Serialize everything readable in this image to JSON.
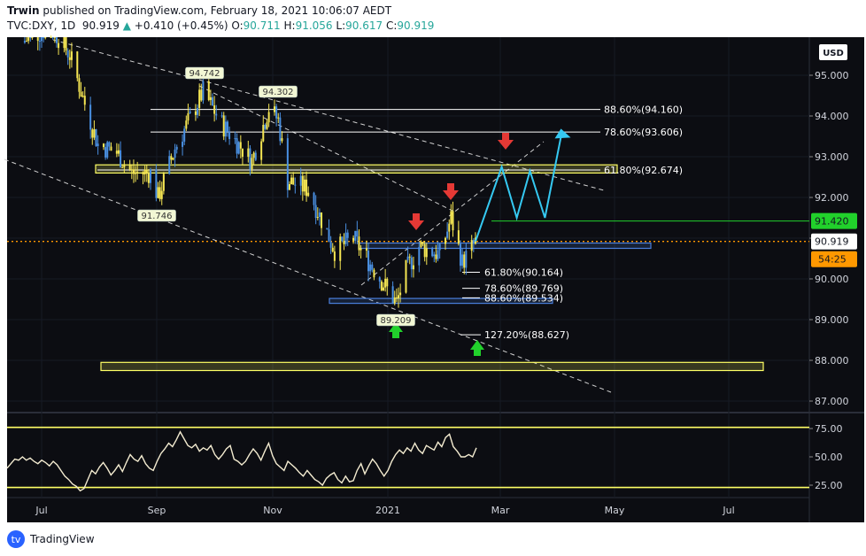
{
  "header": {
    "author": "Trwin",
    "published_text": " published on TradingView.com, February 18, 2021 10:06:07 AEDT",
    "symbol": "TVC:DXY, 1D",
    "last": "90.919",
    "change_arrow": "▲",
    "change": "+0.410 (+0.45%)",
    "o_label": "O:",
    "o_value": "90.711",
    "h_label": "H:",
    "h_value": "91.056",
    "l_label": "L:",
    "l_value": "90.617",
    "c_label": "C:",
    "c_value": "90.919"
  },
  "footer": {
    "brand": "TradingView",
    "logo_icon": "tradingview-logo-icon"
  },
  "currency_button": "USD",
  "colors": {
    "background": "#0c0d12",
    "candle": "#f5e653",
    "candle_alt": "#4a90e2",
    "trendline": "#cccccc",
    "fib_line": "#ffffff",
    "yellow_zone": "#ffff66",
    "blue_zone": "#4a7fdc",
    "projection": "#35c9f2",
    "green_level": "#21d12b",
    "last_price": "#ff9800",
    "arrow_down": "#e53935",
    "arrow_up": "#21d12b",
    "rsi": "#f3ebd0"
  },
  "chart_data": [
    {
      "type": "candlestick",
      "title": "TVC:DXY, 1D",
      "y_axis": {
        "ticks": [
          "95.000",
          "94.000",
          "93.000",
          "92.000",
          "91.000",
          "90.000",
          "89.000",
          "88.000",
          "87.000"
        ],
        "ylim": [
          86.7,
          95.6
        ]
      },
      "x_axis": {
        "ticks": [
          "Jul",
          "Sep",
          "Nov",
          "2021",
          "Mar",
          "May",
          "Jul"
        ]
      },
      "price_path": {
        "x": [
          "2020-06-20",
          "2020-07-06",
          "2020-07-16",
          "2020-07-24",
          "2020-07-31",
          "2020-08-10",
          "2020-08-18",
          "2020-08-28",
          "2020-09-01",
          "2020-09-10",
          "2020-09-25",
          "2020-10-05",
          "2020-10-21",
          "2020-10-30",
          "2020-11-04",
          "2020-11-09",
          "2020-11-20",
          "2020-12-04",
          "2020-12-14",
          "2020-12-24",
          "2021-01-06",
          "2021-01-11",
          "2021-01-18",
          "2021-01-29",
          "2021-02-04",
          "2021-02-10",
          "2021-02-17"
        ],
        "close": [
          95.8,
          96.2,
          95.5,
          94.3,
          93.3,
          93.1,
          92.6,
          92.6,
          92.0,
          93.2,
          94.6,
          93.8,
          92.9,
          94.2,
          93.9,
          92.4,
          92.2,
          90.7,
          91.0,
          90.3,
          89.4,
          90.2,
          90.8,
          90.6,
          91.5,
          90.4,
          90.9
        ]
      },
      "labels": [
        {
          "text": "94.742"
        },
        {
          "text": "94.302"
        },
        {
          "text": "91.746"
        },
        {
          "text": "89.209"
        }
      ],
      "fib_levels_upper": [
        {
          "label": "88.60%(94.160)",
          "value": 94.16
        },
        {
          "label": "78.60%(93.606)",
          "value": 93.606
        },
        {
          "label": "61.80%(92.674)",
          "value": 92.674
        }
      ],
      "fib_levels_lower": [
        {
          "label": "61.80%(90.164)",
          "value": 90.164
        },
        {
          "label": "78.60%(89.769)",
          "value": 89.769
        },
        {
          "label": "88.60%(89.534)",
          "value": 89.534
        },
        {
          "label": "127.20%(88.627)",
          "value": 88.627
        }
      ],
      "zones": [
        {
          "type": "yellow",
          "low": 92.6,
          "high": 92.8
        },
        {
          "type": "blue",
          "low": 90.75,
          "high": 90.88
        },
        {
          "type": "blue",
          "low": 89.4,
          "high": 89.52
        },
        {
          "type": "yellow",
          "low": 87.75,
          "high": 87.95
        }
      ],
      "price_markers": [
        {
          "label": "91.420",
          "value": 91.42,
          "style": "green-level"
        },
        {
          "label": "90.919",
          "value": 90.919,
          "style": "last-price"
        },
        {
          "label": "54:25",
          "style": "countdown"
        }
      ],
      "projection_path": {
        "x": [
          "2021-02-17",
          "2021-03-03",
          "2021-03-11",
          "2021-03-18",
          "2021-03-26",
          "2021-04-04"
        ],
        "y": [
          90.92,
          92.75,
          91.5,
          92.65,
          91.5,
          93.6
        ]
      }
    },
    {
      "type": "line",
      "title": "RSI",
      "y_axis": {
        "ticks": [
          "75.00",
          "50.00",
          "25.00"
        ],
        "ylim": [
          15,
          82
        ]
      },
      "levels": [
        76,
        23
      ],
      "rsi_values": [
        40,
        44,
        48,
        47,
        50,
        47,
        49,
        46,
        44,
        47,
        45,
        42,
        46,
        43,
        38,
        33,
        30,
        26,
        24,
        20,
        22,
        30,
        38,
        35,
        41,
        45,
        40,
        34,
        38,
        43,
        37,
        45,
        52,
        48,
        46,
        51,
        44,
        40,
        38,
        46,
        53,
        57,
        62,
        59,
        65,
        72,
        66,
        60,
        58,
        61,
        55,
        58,
        56,
        60,
        52,
        48,
        52,
        57,
        60,
        48,
        46,
        43,
        46,
        52,
        57,
        53,
        47,
        55,
        62,
        51,
        44,
        41,
        38,
        46,
        43,
        40,
        36,
        33,
        38,
        34,
        30,
        28,
        25,
        31,
        34,
        36,
        30,
        27,
        33,
        28,
        29,
        38,
        44,
        35,
        42,
        48,
        44,
        38,
        33,
        38,
        46,
        52,
        56,
        53,
        58,
        55,
        62,
        56,
        53,
        60,
        58,
        56,
        63,
        59,
        67,
        70,
        59,
        55,
        50,
        50,
        52,
        50,
        58
      ]
    }
  ]
}
